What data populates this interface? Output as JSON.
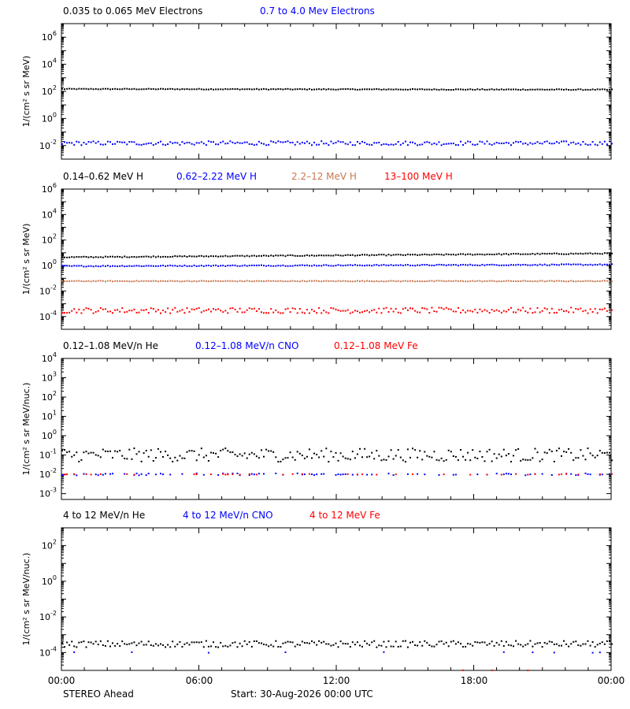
{
  "footer": {
    "left": "STEREO Ahead",
    "center": "Start: 30-Aug-2026 00:00 UTC"
  },
  "x_axis": {
    "ticks": [
      "00:00",
      "06:00",
      "12:00",
      "18:00",
      "00:00"
    ],
    "range_hours": [
      0,
      24
    ]
  },
  "chart_data": [
    {
      "type": "scatter",
      "y_scale": "log",
      "ylabel": "1/(cm² s sr MeV)",
      "ylim": [
        0.001,
        10000000
      ],
      "yticks": [
        {
          "exp": "6",
          "v": 1000000
        },
        {
          "exp": "4",
          "v": 10000
        },
        {
          "exp": "2",
          "v": 100
        },
        {
          "exp": "0",
          "v": 1
        },
        {
          "exp": "-2",
          "v": 0.01
        }
      ],
      "y_tick_style": "power",
      "grid": false,
      "legend": "top-left",
      "series": [
        {
          "name": "0.035 to 0.065 MeV Electrons",
          "color": "#000000",
          "level": 150,
          "spread_log10": 0.03,
          "start_log10": 0.0,
          "end_log10": -0.05
        },
        {
          "name": "0.7 to 4.0 Mev Electrons",
          "color": "#0000ff",
          "level": 0.015,
          "spread_log10": 0.15,
          "start_log10": 0.0,
          "end_log10": 0.0
        }
      ]
    },
    {
      "type": "scatter",
      "y_scale": "log",
      "ylabel": "1/(cm² s sr MeV)",
      "ylim": [
        1e-05,
        1000000
      ],
      "yticks": [
        {
          "exp": "6",
          "v": 1000000
        },
        {
          "exp": "4",
          "v": 10000
        },
        {
          "exp": "2",
          "v": 100
        },
        {
          "exp": "0",
          "v": 1
        },
        {
          "exp": "-2",
          "v": 0.01
        },
        {
          "exp": "-4",
          "v": 0.0001
        }
      ],
      "y_tick_style": "power",
      "grid": false,
      "legend": "top-left",
      "series": [
        {
          "name": "0.14–0.62 MeV H",
          "color": "#000000",
          "level": 5,
          "spread_log10": 0.04,
          "start_log10": -0.05,
          "end_log10": 0.25
        },
        {
          "name": "0.62–2.22 MeV H",
          "color": "#0000ff",
          "level": 0.9,
          "spread_log10": 0.04,
          "start_log10": 0.0,
          "end_log10": 0.12
        },
        {
          "name": "2.2–12 MeV H",
          "color": "#c87850",
          "level": 0.06,
          "spread_log10": 0.03,
          "start_log10": 0.0,
          "end_log10": 0.0
        },
        {
          "name": "13–100 MeV H",
          "color": "#ff0000",
          "level": 0.0003,
          "spread_log10": 0.22,
          "start_log10": 0.0,
          "end_log10": 0.0
        }
      ]
    },
    {
      "type": "scatter",
      "y_scale": "log",
      "ylabel": "1/(cm² s sr MeV/nuc.)",
      "ylim": [
        0.0005,
        10000
      ],
      "yticks": [
        {
          "exp": "4",
          "v": 10000
        },
        {
          "exp": "3",
          "v": 1000
        },
        {
          "exp": "2",
          "v": 100
        },
        {
          "exp": "1",
          "v": 10
        },
        {
          "exp": "0",
          "v": 1
        },
        {
          "exp": "-1",
          "v": 0.1
        },
        {
          "exp": "-2",
          "v": 0.01
        },
        {
          "exp": "-3",
          "v": 0.001
        }
      ],
      "y_tick_style": "power",
      "grid": false,
      "legend": "top-left",
      "series": [
        {
          "name": "0.12–1.08 MeV/n He",
          "color": "#000000",
          "level": 0.1,
          "spread_log10": 0.35,
          "start_log10": 0.0,
          "end_log10": 0.0
        },
        {
          "name": "0.12–1.08 MeV/n CNO",
          "color": "#0000ff",
          "level": 0.01,
          "spread_log10": 0.05,
          "start_log10": 0.0,
          "end_log10": 0.0,
          "sparse": 0.35
        },
        {
          "name": "0.12–1.08 MeV Fe",
          "color": "#ff0000",
          "level": 0.01,
          "spread_log10": 0.02,
          "start_log10": 0.0,
          "end_log10": 0.0,
          "sparse": 0.15
        }
      ]
    },
    {
      "type": "scatter",
      "y_scale": "log",
      "ylabel": "1/(cm² s sr MeV/nuc.)",
      "ylim": [
        1e-05,
        1000
      ],
      "yticks": [
        {
          "exp": "2",
          "v": 100
        },
        {
          "exp": "0",
          "v": 1
        },
        {
          "exp": "-2",
          "v": 0.01
        },
        {
          "exp": "-4",
          "v": 0.0001
        }
      ],
      "y_tick_style": "power",
      "grid": false,
      "legend": "top-left",
      "series": [
        {
          "name": "4 to 12 MeV/n He",
          "color": "#000000",
          "level": 0.0003,
          "spread_log10": 0.18,
          "start_log10": 0.0,
          "end_log10": 0.0
        },
        {
          "name": "4 to 12 MeV/n CNO",
          "color": "#0000ff",
          "level": 0.0001,
          "spread_log10": 0.03,
          "start_log10": 0.0,
          "end_log10": 0.0,
          "sparse": 0.06
        },
        {
          "name": "4 to 12 MeV Fe",
          "color": "#ff0000",
          "level": 1e-05,
          "spread_log10": 0.02,
          "start_log10": 0.0,
          "end_log10": 0.0,
          "sparse": 0.02
        }
      ]
    }
  ]
}
